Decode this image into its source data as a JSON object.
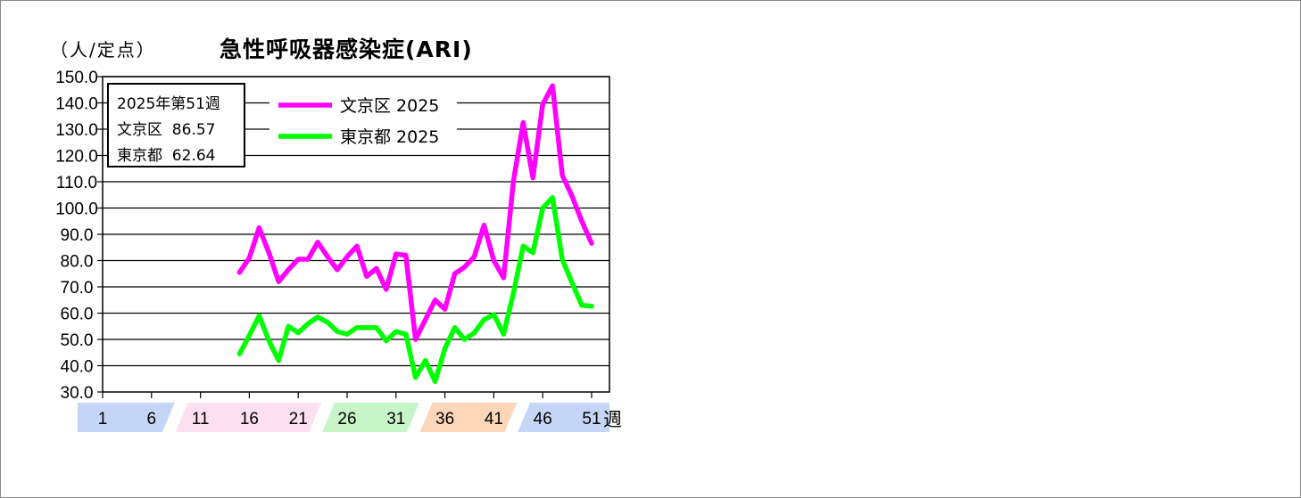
{
  "unit_label": "（人/定点）",
  "info": {
    "line1": "2025年第51週",
    "line2": "文京区  86.57",
    "line3": "東京都  62.64"
  },
  "week_suffix": "週",
  "chart_data": {
    "type": "line",
    "title": "急性呼吸器感染症(ARI)",
    "ylabel": "（人/定点）",
    "xlabel": "週",
    "xlim": [
      1,
      51
    ],
    "ylim": [
      30,
      150
    ],
    "y_ticks": [
      "30.0",
      "40.0",
      "50.0",
      "60.0",
      "70.0",
      "80.0",
      "90.0",
      "100.0",
      "110.0",
      "120.0",
      "130.0",
      "140.0",
      "150.0"
    ],
    "x_ticks": [
      "1",
      "6",
      "11",
      "16",
      "21",
      "26",
      "31",
      "36",
      "41",
      "46",
      "51"
    ],
    "grid": true,
    "legend": "top-left",
    "series": [
      {
        "name": "文京区 2025",
        "color": "#ff00ff",
        "x": [
          15,
          16,
          17,
          18,
          19,
          20,
          21,
          22,
          23,
          24,
          25,
          26,
          27,
          28,
          29,
          30,
          31,
          32,
          33,
          34,
          35,
          36,
          37,
          38,
          39,
          40,
          41,
          42,
          43,
          44,
          45,
          46,
          47,
          48,
          49,
          50,
          51
        ],
        "values": [
          75.5,
          81,
          92.5,
          83,
          72,
          76.5,
          80.5,
          80.5,
          87,
          81.5,
          76.5,
          81.5,
          85.5,
          74,
          77,
          69,
          82.5,
          82,
          50,
          57.5,
          65,
          61.5,
          75,
          77.5,
          81.5,
          93.5,
          80,
          73.5,
          110,
          132.5,
          111.5,
          139.5,
          146.5,
          112.5,
          104.5,
          95,
          86.57
        ]
      },
      {
        "name": "東京都 2025",
        "color": "#00ff00",
        "x": [
          15,
          16,
          17,
          18,
          19,
          20,
          21,
          22,
          23,
          24,
          25,
          26,
          27,
          28,
          29,
          30,
          31,
          32,
          33,
          34,
          35,
          36,
          37,
          38,
          39,
          40,
          41,
          42,
          43,
          44,
          45,
          46,
          47,
          48,
          49,
          50,
          51
        ],
        "values": [
          44.5,
          51.5,
          59,
          49.5,
          42,
          55,
          52.5,
          56,
          58.5,
          56.5,
          53,
          52,
          54.5,
          54.5,
          54.5,
          49.5,
          53,
          52,
          35.5,
          42,
          34,
          46.5,
          54.5,
          50,
          52.5,
          57.5,
          59.5,
          52,
          67.5,
          85.5,
          83,
          100,
          104,
          80.5,
          71.5,
          63,
          62.64
        ]
      }
    ],
    "season_bands": [
      {
        "from": "1",
        "to": "6",
        "color": "#c5d5f5"
      },
      {
        "from": "11",
        "to": "21",
        "color": "#fde0f0"
      },
      {
        "from": "26",
        "to": "31",
        "color": "#c8f5c8"
      },
      {
        "from": "36",
        "to": "41",
        "color": "#fcd6b8"
      },
      {
        "from": "46",
        "to": "51",
        "color": "#c5d5f5"
      }
    ]
  }
}
